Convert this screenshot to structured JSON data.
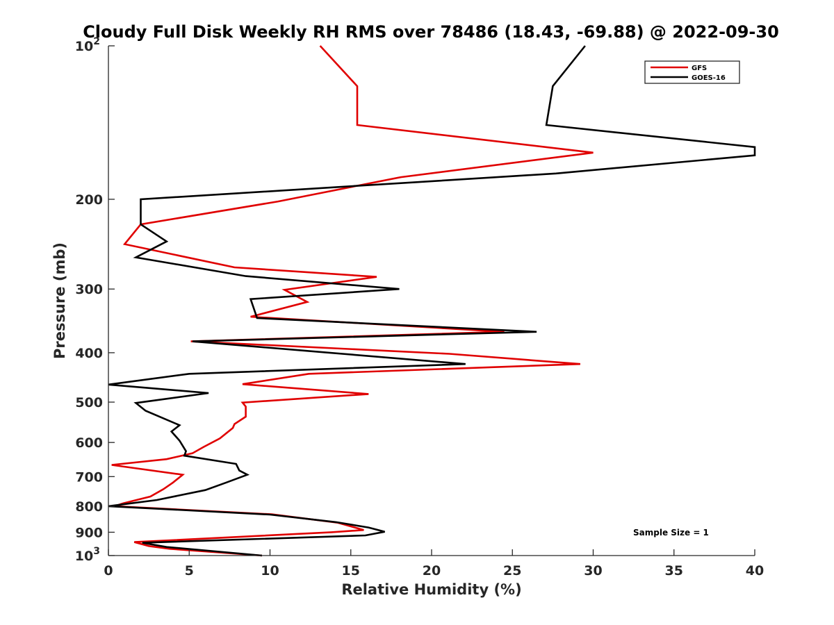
{
  "chart_data": {
    "type": "line",
    "title": "Cloudy Full Disk Weekly RH RMS over 78486 (18.43, -69.88) @ 2022-09-30",
    "xlabel": "Relative Humidity (%)",
    "ylabel": "Pressure (mb)",
    "xlim": [
      0,
      40
    ],
    "ylim": [
      100,
      1000
    ],
    "y_scale": "log",
    "y_reversed": true,
    "x_ticks": [
      "0",
      "5",
      "10",
      "15",
      "20",
      "25",
      "30",
      "35",
      "40"
    ],
    "y_ticks": [
      {
        "value": 100,
        "base": "10",
        "exp": "2"
      },
      {
        "value": 200,
        "label": "200"
      },
      {
        "value": 300,
        "label": "300"
      },
      {
        "value": 400,
        "label": "400"
      },
      {
        "value": 500,
        "label": "500"
      },
      {
        "value": 600,
        "label": "600"
      },
      {
        "value": 700,
        "label": "700"
      },
      {
        "value": 800,
        "label": "800"
      },
      {
        "value": 900,
        "label": "900"
      },
      {
        "value": 1000,
        "base": "10",
        "exp": "3"
      }
    ],
    "legend_position": "top-right",
    "annotation": "Sample Size = 1",
    "series": [
      {
        "name": "GFS",
        "color": "#e00000",
        "points": [
          [
            13.1,
            100
          ],
          [
            15.4,
            120
          ],
          [
            15.4,
            143
          ],
          [
            30.0,
            162
          ],
          [
            18.1,
            181
          ],
          [
            10.5,
            202
          ],
          [
            2.0,
            224
          ],
          [
            1.0,
            245
          ],
          [
            7.8,
            272
          ],
          [
            16.6,
            284
          ],
          [
            10.9,
            301
          ],
          [
            12.3,
            318
          ],
          [
            8.8,
            340
          ],
          [
            24.5,
            364
          ],
          [
            5.1,
            380
          ],
          [
            21.1,
            402
          ],
          [
            29.2,
            421
          ],
          [
            12.4,
            440
          ],
          [
            8.3,
            461
          ],
          [
            16.1,
            482
          ],
          [
            8.3,
            501
          ],
          [
            8.5,
            510
          ],
          [
            8.5,
            534
          ],
          [
            7.8,
            552
          ],
          [
            7.7,
            562
          ],
          [
            6.9,
            589
          ],
          [
            5.9,
            612
          ],
          [
            5.2,
            630
          ],
          [
            3.6,
            647
          ],
          [
            0.2,
            664
          ],
          [
            4.6,
            694
          ],
          [
            4.0,
            719
          ],
          [
            3.4,
            741
          ],
          [
            2.6,
            766
          ],
          [
            0.9,
            790
          ],
          [
            0.4,
            800
          ],
          [
            10.1,
            830
          ],
          [
            14.2,
            862
          ],
          [
            15.8,
            891
          ],
          [
            13.8,
            900
          ],
          [
            1.6,
            941
          ],
          [
            2.5,
            958
          ],
          [
            3.8,
            970
          ],
          [
            9.5,
            1000
          ]
        ]
      },
      {
        "name": "GOES-16",
        "color": "#000000",
        "points": [
          [
            29.5,
            100
          ],
          [
            27.5,
            120
          ],
          [
            27.1,
            143
          ],
          [
            40.0,
            158
          ],
          [
            40.0,
            164
          ],
          [
            27.7,
            178
          ],
          [
            2.0,
            200
          ],
          [
            2.0,
            224
          ],
          [
            3.6,
            242
          ],
          [
            1.7,
            260
          ],
          [
            8.5,
            283
          ],
          [
            18.0,
            300
          ],
          [
            8.8,
            314
          ],
          [
            9.2,
            342
          ],
          [
            26.5,
            364
          ],
          [
            5.2,
            380
          ],
          [
            22.1,
            421
          ],
          [
            5.0,
            440
          ],
          [
            0.0,
            462
          ],
          [
            6.2,
            480
          ],
          [
            1.7,
            502
          ],
          [
            2.3,
            520
          ],
          [
            4.4,
            555
          ],
          [
            3.9,
            571
          ],
          [
            4.4,
            595
          ],
          [
            4.8,
            624
          ],
          [
            4.7,
            637
          ],
          [
            7.9,
            661
          ],
          [
            8.1,
            681
          ],
          [
            8.6,
            694
          ],
          [
            7.3,
            719
          ],
          [
            6.0,
            744
          ],
          [
            3.0,
            778
          ],
          [
            0.0,
            800
          ],
          [
            10.0,
            831
          ],
          [
            14.1,
            860
          ],
          [
            16.1,
            881
          ],
          [
            17.1,
            898
          ],
          [
            15.9,
            913
          ],
          [
            2.1,
            944
          ],
          [
            3.6,
            962
          ],
          [
            9.5,
            1000
          ]
        ]
      }
    ]
  }
}
